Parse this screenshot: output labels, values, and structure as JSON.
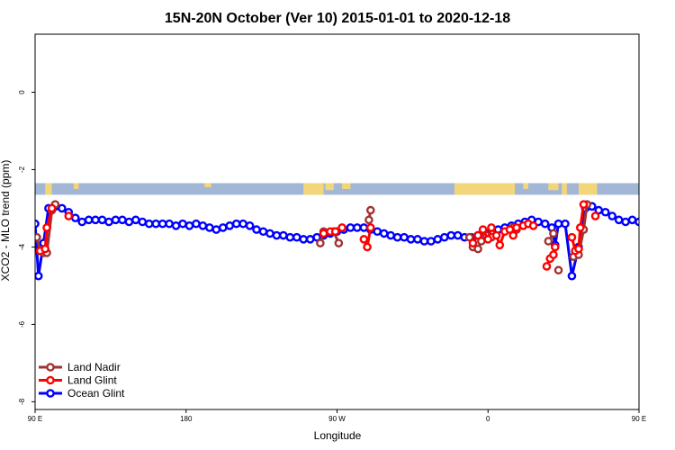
{
  "chart_data": {
    "type": "line",
    "title": "15N-20N October (Ver 10)   2015-01-01 to 2020-12-18",
    "xlabel": "Longitude",
    "ylabel": "XCO2 - MLO trend (ppm)",
    "xlim": [
      90,
      450
    ],
    "ylim": [
      -8.2,
      1.5
    ],
    "x_ticks": [
      {
        "value": 90,
        "label": "90 E"
      },
      {
        "value": 180,
        "label": "180"
      },
      {
        "value": 270,
        "label": "90 W"
      },
      {
        "value": 360,
        "label": "0"
      },
      {
        "value": 450,
        "label": "90 E"
      },
      {
        "value": 540,
        "label": "180"
      }
    ],
    "y_ticks": [
      {
        "value": 0,
        "label": "0"
      },
      {
        "value": -2,
        "label": "-2"
      },
      {
        "value": -4,
        "label": "-4"
      },
      {
        "value": -6,
        "label": "-6"
      },
      {
        "value": -8,
        "label": "-8"
      }
    ],
    "map_band": {
      "y_top": -2.35,
      "y_bottom": -2.65,
      "ocean_color": "#a2b6d6",
      "land_color": "#f4d67a"
    },
    "legend_position": "bottom-left",
    "series": [
      {
        "name": "Land Nadir",
        "color": "#a33232",
        "segments": [
          [
            [
              91,
              -3.75
            ],
            [
              93,
              -4.1
            ],
            [
              95,
              -4.15
            ],
            [
              97,
              -4.15
            ],
            [
              100,
              -3.05
            ],
            [
              102,
              -2.9
            ]
          ],
          [
            [
              260,
              -3.9
            ],
            [
              262,
              -3.6
            ],
            [
              268,
              -3.6
            ],
            [
              271,
              -3.9
            ]
          ],
          [
            [
              289,
              -3.3
            ],
            [
              290,
              -3.05
            ]
          ],
          [
            [
              349,
              -3.75
            ],
            [
              351,
              -4.0
            ],
            [
              354,
              -4.05
            ],
            [
              356,
              -3.85
            ],
            [
              359,
              -3.7
            ],
            [
              362,
              -3.75
            ]
          ],
          [
            [
              375,
              -3.5
            ],
            [
              377,
              -3.55
            ]
          ],
          [
            [
              396,
              -3.85
            ],
            [
              399,
              -3.65
            ]
          ],
          [
            [
              402,
              -4.6
            ]
          ],
          [
            [
              411,
              -4.25
            ],
            [
              413,
              -4.1
            ],
            [
              414,
              -4.2
            ],
            [
              417,
              -3.55
            ],
            [
              419,
              -2.9
            ]
          ]
        ]
      },
      {
        "name": "Land Glint",
        "color": "#ff0000",
        "segments": [
          [
            [
              93,
              -4.1
            ],
            [
              96,
              -4.05
            ],
            [
              97,
              -3.5
            ],
            [
              100,
              -3.0
            ]
          ],
          [
            [
              110,
              -3.2
            ]
          ],
          [
            [
              262,
              -3.65
            ],
            [
              266,
              -3.6
            ],
            [
              269,
              -3.6
            ],
            [
              273,
              -3.5
            ]
          ],
          [
            [
              286,
              -3.8
            ],
            [
              288,
              -4.0
            ],
            [
              290,
              -3.5
            ]
          ],
          [
            [
              351,
              -3.9
            ],
            [
              354,
              -3.7
            ],
            [
              357,
              -3.55
            ],
            [
              360,
              -3.8
            ],
            [
              362,
              -3.5
            ],
            [
              365,
              -3.7
            ],
            [
              367,
              -3.95
            ],
            [
              370,
              -3.6
            ],
            [
              373,
              -3.55
            ],
            [
              375,
              -3.7
            ],
            [
              377,
              -3.5
            ],
            [
              381,
              -3.45
            ],
            [
              384,
              -3.4
            ],
            [
              387,
              -3.45
            ]
          ],
          [
            [
              395,
              -4.5
            ],
            [
              397,
              -4.3
            ],
            [
              399,
              -4.2
            ],
            [
              400,
              -4.0
            ]
          ],
          [
            [
              410,
              -3.75
            ],
            [
              412,
              -4.1
            ],
            [
              414,
              -4.05
            ],
            [
              415,
              -3.5
            ],
            [
              417,
              -2.9
            ]
          ],
          [
            [
              424,
              -3.2
            ]
          ]
        ]
      },
      {
        "name": "Ocean Glint",
        "color": "#0000ff",
        "points": [
          [
            90,
            -3.4
          ],
          [
            92,
            -4.75
          ],
          [
            95,
            -3.9
          ],
          [
            98,
            -3.0
          ],
          [
            102,
            -2.95
          ],
          [
            106,
            -3.0
          ],
          [
            110,
            -3.1
          ],
          [
            114,
            -3.25
          ],
          [
            118,
            -3.35
          ],
          [
            122,
            -3.3
          ],
          [
            126,
            -3.3
          ],
          [
            130,
            -3.3
          ],
          [
            134,
            -3.35
          ],
          [
            138,
            -3.3
          ],
          [
            142,
            -3.3
          ],
          [
            146,
            -3.35
          ],
          [
            150,
            -3.3
          ],
          [
            154,
            -3.35
          ],
          [
            158,
            -3.4
          ],
          [
            162,
            -3.4
          ],
          [
            166,
            -3.4
          ],
          [
            170,
            -3.4
          ],
          [
            174,
            -3.45
          ],
          [
            178,
            -3.4
          ],
          [
            182,
            -3.45
          ],
          [
            186,
            -3.4
          ],
          [
            190,
            -3.45
          ],
          [
            194,
            -3.5
          ],
          [
            198,
            -3.55
          ],
          [
            202,
            -3.5
          ],
          [
            206,
            -3.45
          ],
          [
            210,
            -3.4
          ],
          [
            214,
            -3.4
          ],
          [
            218,
            -3.45
          ],
          [
            222,
            -3.55
          ],
          [
            226,
            -3.6
          ],
          [
            230,
            -3.65
          ],
          [
            234,
            -3.7
          ],
          [
            238,
            -3.7
          ],
          [
            242,
            -3.75
          ],
          [
            246,
            -3.75
          ],
          [
            250,
            -3.8
          ],
          [
            254,
            -3.8
          ],
          [
            258,
            -3.75
          ],
          [
            262,
            -3.7
          ],
          [
            266,
            -3.65
          ],
          [
            270,
            -3.6
          ],
          [
            274,
            -3.55
          ],
          [
            278,
            -3.5
          ],
          [
            282,
            -3.5
          ],
          [
            286,
            -3.5
          ],
          [
            290,
            -3.55
          ],
          [
            294,
            -3.6
          ],
          [
            298,
            -3.65
          ],
          [
            302,
            -3.7
          ],
          [
            306,
            -3.75
          ],
          [
            310,
            -3.75
          ],
          [
            314,
            -3.8
          ],
          [
            318,
            -3.8
          ],
          [
            322,
            -3.85
          ],
          [
            326,
            -3.85
          ],
          [
            330,
            -3.8
          ],
          [
            334,
            -3.75
          ],
          [
            338,
            -3.7
          ],
          [
            342,
            -3.7
          ],
          [
            346,
            -3.75
          ],
          [
            350,
            -3.75
          ],
          [
            354,
            -3.7
          ],
          [
            358,
            -3.65
          ],
          [
            362,
            -3.6
          ],
          [
            366,
            -3.55
          ],
          [
            370,
            -3.5
          ],
          [
            374,
            -3.45
          ],
          [
            378,
            -3.4
          ],
          [
            382,
            -3.35
          ],
          [
            386,
            -3.3
          ],
          [
            390,
            -3.35
          ],
          [
            394,
            -3.4
          ],
          [
            398,
            -3.5
          ],
          [
            400,
            -3.95
          ],
          [
            402,
            -3.4
          ],
          [
            406,
            -3.4
          ],
          [
            410,
            -4.75
          ],
          [
            414,
            -4.0
          ],
          [
            418,
            -3.0
          ],
          [
            422,
            -2.95
          ],
          [
            426,
            -3.05
          ],
          [
            430,
            -3.1
          ],
          [
            434,
            -3.2
          ],
          [
            438,
            -3.3
          ],
          [
            442,
            -3.35
          ],
          [
            446,
            -3.3
          ],
          [
            450,
            -3.35
          ]
        ]
      }
    ]
  }
}
